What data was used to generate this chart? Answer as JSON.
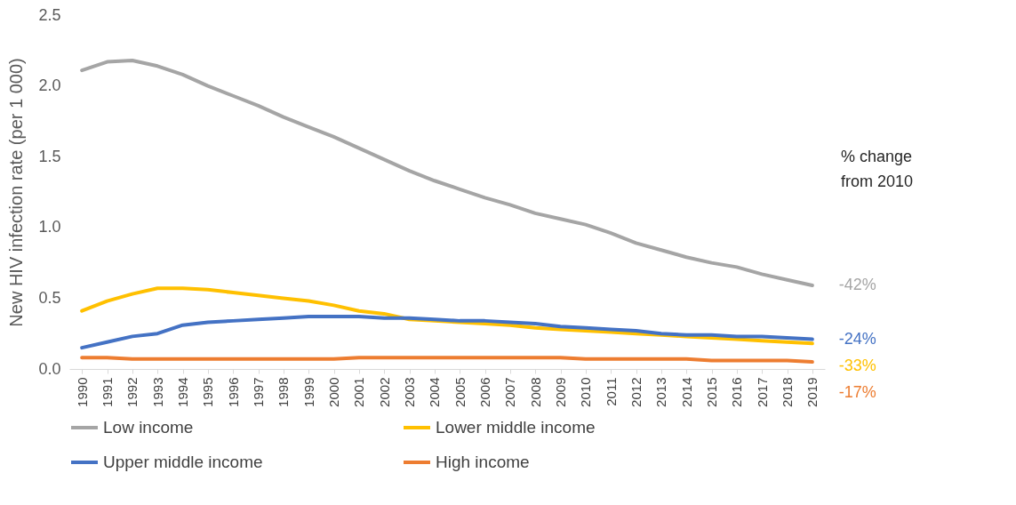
{
  "chart_data": {
    "type": "line",
    "ylabel": "New HIV infection rate (per 1 000)",
    "categories": [
      "1990",
      "1991",
      "1992",
      "1993",
      "1994",
      "1995",
      "1996",
      "1997",
      "1998",
      "1999",
      "2000",
      "2001",
      "2002",
      "2003",
      "2004",
      "2005",
      "2006",
      "2007",
      "2008",
      "2009",
      "2010",
      "2011",
      "2012",
      "2013",
      "2014",
      "2015",
      "2016",
      "2017",
      "2018",
      "2019"
    ],
    "series": [
      {
        "name": "Low income",
        "color": "#a5a5a5",
        "values": [
          2.11,
          2.17,
          2.18,
          2.14,
          2.08,
          2.0,
          1.93,
          1.86,
          1.78,
          1.71,
          1.64,
          1.56,
          1.48,
          1.4,
          1.33,
          1.27,
          1.21,
          1.16,
          1.1,
          1.06,
          1.02,
          0.96,
          0.89,
          0.84,
          0.79,
          0.75,
          0.72,
          0.67,
          0.63,
          0.59
        ]
      },
      {
        "name": "Lower middle income",
        "color": "#ffc000",
        "values": [
          0.41,
          0.48,
          0.53,
          0.57,
          0.57,
          0.56,
          0.54,
          0.52,
          0.5,
          0.48,
          0.45,
          0.41,
          0.39,
          0.35,
          0.34,
          0.33,
          0.32,
          0.31,
          0.29,
          0.28,
          0.27,
          0.26,
          0.25,
          0.24,
          0.23,
          0.22,
          0.21,
          0.2,
          0.19,
          0.18
        ]
      },
      {
        "name": "Upper middle income",
        "color": "#4472c4",
        "values": [
          0.15,
          0.19,
          0.23,
          0.25,
          0.31,
          0.33,
          0.34,
          0.35,
          0.36,
          0.37,
          0.37,
          0.37,
          0.36,
          0.36,
          0.35,
          0.34,
          0.34,
          0.33,
          0.32,
          0.3,
          0.29,
          0.28,
          0.27,
          0.25,
          0.24,
          0.24,
          0.23,
          0.23,
          0.22,
          0.21
        ]
      },
      {
        "name": "High income",
        "color": "#ed7d31",
        "values": [
          0.08,
          0.08,
          0.07,
          0.07,
          0.07,
          0.07,
          0.07,
          0.07,
          0.07,
          0.07,
          0.07,
          0.08,
          0.08,
          0.08,
          0.08,
          0.08,
          0.08,
          0.08,
          0.08,
          0.08,
          0.07,
          0.07,
          0.07,
          0.07,
          0.07,
          0.06,
          0.06,
          0.06,
          0.06,
          0.05
        ]
      }
    ],
    "ylim": [
      0,
      2.5
    ],
    "yticks": [
      {
        "value": 0,
        "label": "0.0"
      },
      0.5,
      {
        "value": 1,
        "label": "1.0"
      },
      1.5,
      {
        "value": 2,
        "label": "2.0"
      },
      2.5
    ],
    "legend": "bottom",
    "annotations": [
      "% change from 2010",
      {
        "text": "-42%",
        "x": "2019",
        "y": 0.59
      },
      {
        "text": "-24%",
        "x": "2019",
        "y": 0.21
      },
      {
        "text": "-33%",
        "x": "2019",
        "y": 0.18
      },
      {
        "text": "-17%",
        "x": "2019",
        "y": 0.05
      }
    ]
  }
}
